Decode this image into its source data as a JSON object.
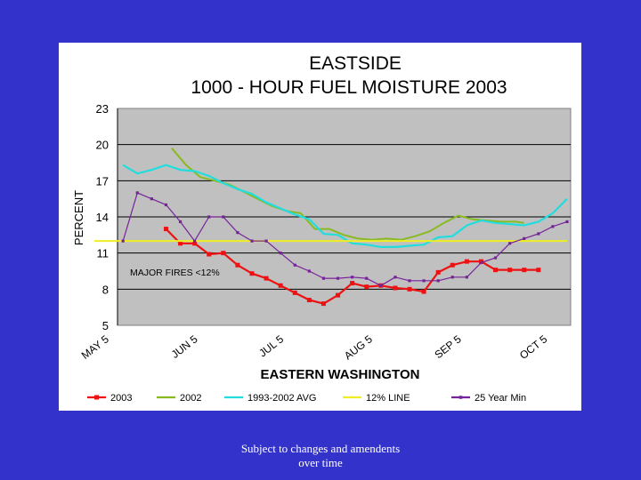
{
  "chart_data": {
    "type": "line",
    "title": "EASTSIDE",
    "subtitle": "1000 - HOUR FUEL MOISTURE  2003",
    "xlabel": "EASTERN WASHINGTON",
    "ylabel": "PERCENT",
    "ylim": [
      5,
      23
    ],
    "yticks": [
      "23",
      "20",
      "17",
      "14",
      "11",
      "8",
      "5"
    ],
    "x_range": [
      0,
      165
    ],
    "xticks": [
      {
        "label": "MAY 5",
        "x": 0
      },
      {
        "label": "JUN 5",
        "x": 31
      },
      {
        "label": "JUL 5",
        "x": 61
      },
      {
        "label": "AUG 5",
        "x": 92
      },
      {
        "label": "SEP 5",
        "x": 123
      },
      {
        "label": "OCT 5",
        "x": 153
      }
    ],
    "grid": true,
    "annotation": "MAJOR FIRES <12%",
    "legend_position": "bottom",
    "colors": {
      "background": "#3333cc",
      "plot_area": "#c0c0c0",
      "card": "#ffffff"
    },
    "series": [
      {
        "name": "2003",
        "color": "#ee1111",
        "marker": "square",
        "width": 2.2,
        "x": [
          25,
          30,
          35,
          40,
          45,
          50,
          55,
          60,
          65,
          70,
          75,
          80,
          85,
          90,
          95,
          100,
          105,
          110,
          115,
          120,
          125,
          130,
          135,
          140,
          145,
          150,
          155
        ],
        "y": [
          13,
          11.8,
          11.8,
          10.9,
          11,
          10,
          9.3,
          8.9,
          8.3,
          7.7,
          7.1,
          6.8,
          7.5,
          8.5,
          8.2,
          8.3,
          8.1,
          8,
          7.8,
          9.4,
          10,
          10.3,
          10.3,
          9.6,
          9.6,
          9.6,
          9.6
        ]
      },
      {
        "name": "2002",
        "color": "#88bb22",
        "marker": "none",
        "width": 2,
        "x": [
          27,
          32,
          37,
          42,
          47,
          52,
          57,
          62,
          67,
          72,
          77,
          82,
          87,
          92,
          97,
          102,
          107,
          112,
          117,
          122,
          127,
          132,
          137,
          142,
          147,
          150
        ],
        "y": [
          19.7,
          18.3,
          17.3,
          17,
          16.7,
          16.1,
          15.5,
          14.9,
          14.5,
          14.3,
          13,
          13,
          12.5,
          12.2,
          12.1,
          12.2,
          12.1,
          12.4,
          12.8,
          13.5,
          14.1,
          13.8,
          13.7,
          13.6,
          13.6,
          13.5
        ]
      },
      {
        "name": "1993-2002 AVG",
        "color": "#22dddd",
        "marker": "none",
        "width": 2.2,
        "x": [
          10,
          15,
          20,
          25,
          30,
          35,
          40,
          45,
          50,
          55,
          60,
          65,
          70,
          75,
          80,
          85,
          90,
          95,
          100,
          105,
          110,
          115,
          120,
          125,
          130,
          135,
          140,
          145,
          150,
          155,
          160,
          165
        ],
        "y": [
          18.3,
          17.6,
          17.9,
          18.3,
          17.9,
          17.8,
          17.4,
          16.8,
          16.3,
          15.9,
          15.2,
          14.7,
          14.2,
          13.8,
          12.6,
          12.5,
          11.8,
          11.7,
          11.5,
          11.5,
          11.6,
          11.7,
          12.3,
          12.4,
          13.3,
          13.7,
          13.5,
          13.4,
          13.3,
          13.6,
          14.3,
          15.5
        ]
      },
      {
        "name": "12% LINE",
        "color": "#eeee22",
        "marker": "none",
        "width": 2,
        "x": [
          0,
          165
        ],
        "y": [
          12,
          12
        ]
      },
      {
        "name": "25 Year Min",
        "color": "#772299",
        "marker": "square-small",
        "width": 1.2,
        "x": [
          10,
          15,
          20,
          25,
          30,
          35,
          40,
          45,
          50,
          55,
          60,
          65,
          70,
          75,
          80,
          85,
          90,
          95,
          100,
          105,
          110,
          115,
          120,
          125,
          130,
          135,
          140,
          145,
          150,
          155,
          160,
          165
        ],
        "y": [
          12,
          16,
          15.5,
          15,
          13.6,
          12,
          14,
          14,
          12.7,
          12,
          12,
          11,
          10,
          9.5,
          8.9,
          8.9,
          9,
          8.9,
          8.3,
          9,
          8.7,
          8.7,
          8.7,
          9,
          9,
          10.2,
          10.6,
          11.8,
          12.2,
          12.6,
          13.2,
          13.6
        ]
      }
    ]
  },
  "footer": {
    "line1": "Subject to changes and amendents",
    "line2": "over time"
  }
}
